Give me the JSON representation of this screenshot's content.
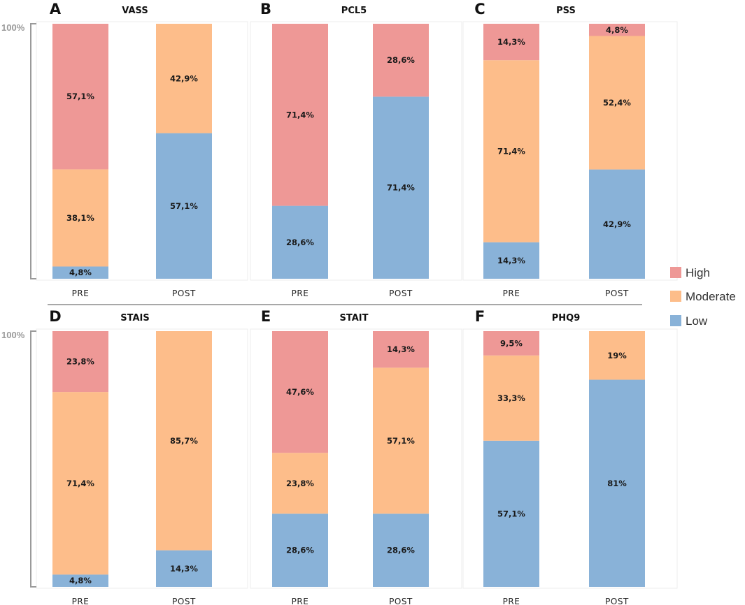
{
  "chart_data": [
    {
      "panel": "A",
      "title": "VASS",
      "type": "bar",
      "stacked": true,
      "ylabel": "100%",
      "categories": [
        "PRE",
        "POST"
      ],
      "series": [
        {
          "name": "Low",
          "values": [
            4.8,
            57.1
          ],
          "labels": [
            "4,8%",
            "57,1%"
          ]
        },
        {
          "name": "Moderate",
          "values": [
            38.1,
            42.9
          ],
          "labels": [
            "38,1%",
            "42,9%"
          ]
        },
        {
          "name": "High",
          "values": [
            57.1,
            0
          ],
          "labels": [
            "57,1%",
            ""
          ]
        }
      ]
    },
    {
      "panel": "B",
      "title": "PCL5",
      "type": "bar",
      "stacked": true,
      "categories": [
        "PRE",
        "POST"
      ],
      "series": [
        {
          "name": "Low",
          "values": [
            28.6,
            71.4
          ],
          "labels": [
            "28,6%",
            "71,4%"
          ]
        },
        {
          "name": "Moderate",
          "values": [
            0,
            0
          ],
          "labels": [
            "",
            ""
          ]
        },
        {
          "name": "High",
          "values": [
            71.4,
            28.6
          ],
          "labels": [
            "71,4%",
            "28,6%"
          ]
        }
      ]
    },
    {
      "panel": "C",
      "title": "PSS",
      "type": "bar",
      "stacked": true,
      "categories": [
        "PRE",
        "POST"
      ],
      "series": [
        {
          "name": "Low",
          "values": [
            14.3,
            42.9
          ],
          "labels": [
            "14,3%",
            "42,9%"
          ]
        },
        {
          "name": "Moderate",
          "values": [
            71.4,
            52.4
          ],
          "labels": [
            "71,4%",
            "52,4%"
          ]
        },
        {
          "name": "High",
          "values": [
            14.3,
            4.8
          ],
          "labels": [
            "14,3%",
            "4,8%"
          ]
        }
      ]
    },
    {
      "panel": "D",
      "title": "STAIS",
      "type": "bar",
      "stacked": true,
      "ylabel": "100%",
      "categories": [
        "PRE",
        "POST"
      ],
      "series": [
        {
          "name": "Low",
          "values": [
            4.8,
            14.3
          ],
          "labels": [
            "4,8%",
            "14,3%"
          ]
        },
        {
          "name": "Moderate",
          "values": [
            71.4,
            85.7
          ],
          "labels": [
            "71,4%",
            "85,7%"
          ]
        },
        {
          "name": "High",
          "values": [
            23.8,
            0
          ],
          "labels": [
            "23,8%",
            ""
          ]
        }
      ]
    },
    {
      "panel": "E",
      "title": "STAIT",
      "type": "bar",
      "stacked": true,
      "categories": [
        "PRE",
        "POST"
      ],
      "series": [
        {
          "name": "Low",
          "values": [
            28.6,
            28.6
          ],
          "labels": [
            "28,6%",
            "28,6%"
          ]
        },
        {
          "name": "Moderate",
          "values": [
            23.8,
            57.1
          ],
          "labels": [
            "23,8%",
            "57,1%"
          ]
        },
        {
          "name": "High",
          "values": [
            47.6,
            14.3
          ],
          "labels": [
            "47,6%",
            "14,3%"
          ]
        }
      ]
    },
    {
      "panel": "F",
      "title": "PHQ9",
      "type": "bar",
      "stacked": true,
      "categories": [
        "PRE",
        "POST"
      ],
      "series": [
        {
          "name": "Low",
          "values": [
            57.1,
            81
          ],
          "labels": [
            "57,1%",
            "81%"
          ]
        },
        {
          "name": "Moderate",
          "values": [
            33.3,
            19
          ],
          "labels": [
            "33,3%",
            "19%"
          ]
        },
        {
          "name": "High",
          "values": [
            9.5,
            0
          ],
          "labels": [
            "9,5%",
            ""
          ]
        }
      ]
    }
  ],
  "legend": [
    {
      "name": "High",
      "color": "#ee9896"
    },
    {
      "name": "Moderate",
      "color": "#fdbd8a"
    },
    {
      "name": "Low",
      "color": "#89b2d8"
    }
  ],
  "colors": {
    "High": "#ee9896",
    "Moderate": "#fdbd8a",
    "Low": "#89b2d8"
  }
}
